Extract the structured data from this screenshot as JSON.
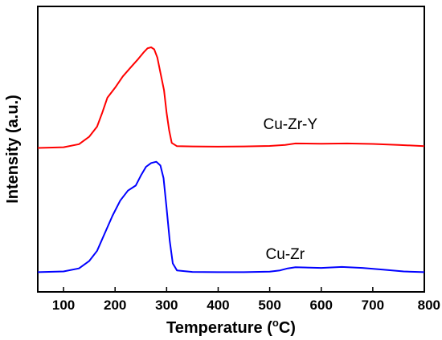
{
  "chart_data": {
    "type": "line",
    "xlabel": "Temperature (",
    "xlabel_super": "o",
    "xlabel_unit": "C)",
    "ylabel": "Intensity (a.u.)",
    "xlim": [
      50,
      800
    ],
    "ylim": [
      0,
      1
    ],
    "x_ticks": [
      "100",
      "200",
      "300",
      "400",
      "500",
      "600",
      "700",
      "800"
    ],
    "grid": false,
    "legend": "none",
    "series": [
      {
        "name": "Cu-Zr-Y",
        "color": "#ff0000",
        "points": [
          [
            50,
            0.5
          ],
          [
            100,
            0.503
          ],
          [
            130,
            0.515
          ],
          [
            150,
            0.545
          ],
          [
            165,
            0.585
          ],
          [
            175,
            0.64
          ],
          [
            185,
            0.7
          ],
          [
            200,
            0.74
          ],
          [
            215,
            0.785
          ],
          [
            230,
            0.82
          ],
          [
            245,
            0.855
          ],
          [
            255,
            0.88
          ],
          [
            263,
            0.897
          ],
          [
            270,
            0.901
          ],
          [
            276,
            0.893
          ],
          [
            282,
            0.86
          ],
          [
            288,
            0.8
          ],
          [
            295,
            0.73
          ],
          [
            300,
            0.64
          ],
          [
            305,
            0.57
          ],
          [
            310,
            0.52
          ],
          [
            320,
            0.507
          ],
          [
            350,
            0.506
          ],
          [
            400,
            0.505
          ],
          [
            450,
            0.506
          ],
          [
            500,
            0.508
          ],
          [
            530,
            0.512
          ],
          [
            550,
            0.518
          ],
          [
            600,
            0.517
          ],
          [
            650,
            0.518
          ],
          [
            700,
            0.516
          ],
          [
            750,
            0.512
          ],
          [
            800,
            0.507
          ]
        ]
      },
      {
        "name": "Cu-Zr",
        "color": "#0000ff",
        "points": [
          [
            50,
            0.005
          ],
          [
            100,
            0.008
          ],
          [
            130,
            0.02
          ],
          [
            150,
            0.05
          ],
          [
            165,
            0.09
          ],
          [
            180,
            0.16
          ],
          [
            195,
            0.23
          ],
          [
            210,
            0.29
          ],
          [
            225,
            0.33
          ],
          [
            240,
            0.35
          ],
          [
            250,
            0.39
          ],
          [
            260,
            0.425
          ],
          [
            270,
            0.44
          ],
          [
            280,
            0.445
          ],
          [
            288,
            0.43
          ],
          [
            294,
            0.38
          ],
          [
            300,
            0.26
          ],
          [
            306,
            0.13
          ],
          [
            312,
            0.04
          ],
          [
            320,
            0.012
          ],
          [
            350,
            0.006
          ],
          [
            400,
            0.005
          ],
          [
            450,
            0.005
          ],
          [
            500,
            0.007
          ],
          [
            520,
            0.012
          ],
          [
            535,
            0.02
          ],
          [
            550,
            0.025
          ],
          [
            600,
            0.022
          ],
          [
            640,
            0.026
          ],
          [
            680,
            0.022
          ],
          [
            720,
            0.015
          ],
          [
            760,
            0.008
          ],
          [
            800,
            0.005
          ]
        ]
      }
    ],
    "annotations": [
      {
        "id": "label-cu-zr-y",
        "text": "Cu-Zr-Y",
        "x": 540,
        "y": 0.575
      },
      {
        "id": "label-cu-zr",
        "text": "Cu-Zr",
        "x": 530,
        "y": 0.057
      }
    ]
  }
}
